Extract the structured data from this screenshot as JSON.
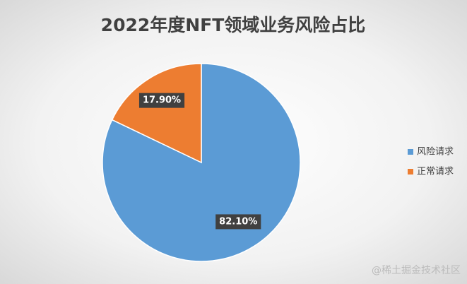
{
  "chart_data": {
    "type": "pie",
    "title": "2022年度NFT领域业务风险占比",
    "categories": [
      "风险请求",
      "正常请求"
    ],
    "values": [
      82.1,
      17.9
    ],
    "value_labels": [
      "82.10%",
      "17.90%"
    ],
    "colors": [
      "#5b9bd5",
      "#ed7d31"
    ],
    "legend": "right"
  },
  "watermark": "@稀土掘金技术社区"
}
